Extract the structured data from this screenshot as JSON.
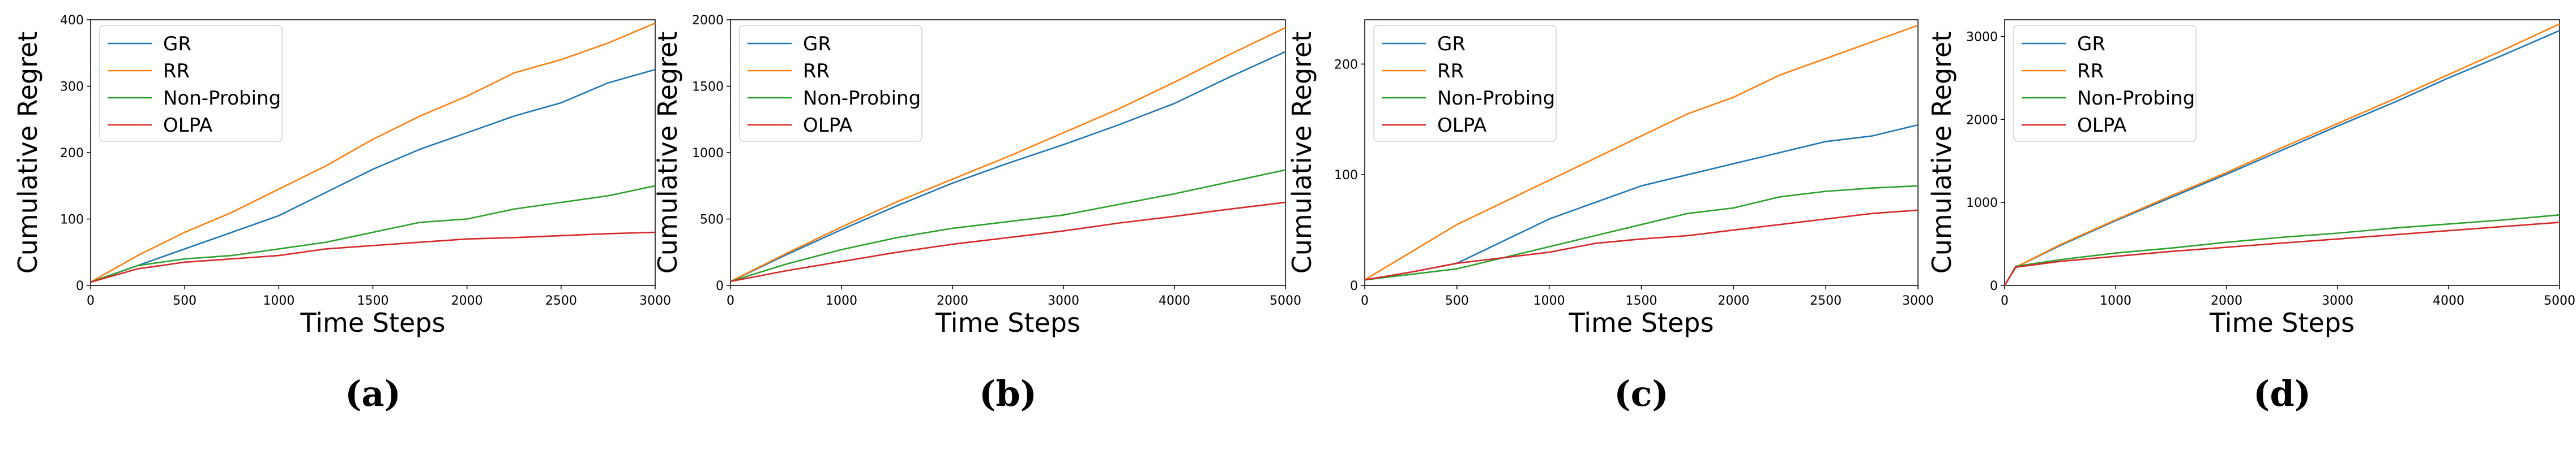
{
  "colors": {
    "GR": "#1f77b4",
    "RR": "#ff7f0e",
    "Non-Probing": "#2ca02c",
    "OLPA": "#d62728"
  },
  "chart_data": [
    {
      "type": "line",
      "caption": "(a)",
      "xlabel": "Time Steps",
      "ylabel": "Cumulative Regret",
      "xlim": [
        0,
        3000
      ],
      "ylim": [
        0,
        400
      ],
      "xticks": [
        0,
        500,
        1000,
        1500,
        2000,
        2500,
        3000
      ],
      "yticks": [
        0,
        100,
        200,
        300,
        400
      ],
      "legend": "top-left",
      "x": [
        0,
        250,
        500,
        750,
        1000,
        1250,
        1500,
        1750,
        2000,
        2250,
        2500,
        2750,
        3000
      ],
      "series": [
        {
          "name": "GR",
          "values": [
            5,
            30,
            55,
            80,
            105,
            140,
            175,
            205,
            230,
            255,
            275,
            305,
            325
          ]
        },
        {
          "name": "RR",
          "values": [
            5,
            45,
            80,
            110,
            145,
            180,
            220,
            255,
            285,
            320,
            340,
            365,
            395
          ]
        },
        {
          "name": "Non-Probing",
          "values": [
            5,
            30,
            40,
            45,
            55,
            65,
            80,
            95,
            100,
            115,
            125,
            135,
            150
          ]
        },
        {
          "name": "OLPA",
          "values": [
            5,
            25,
            35,
            40,
            45,
            55,
            60,
            65,
            70,
            72,
            75,
            78,
            80
          ]
        }
      ]
    },
    {
      "type": "line",
      "caption": "(b)",
      "xlabel": "Time Steps",
      "ylabel": "Cumulative Regret",
      "xlim": [
        0,
        5000
      ],
      "ylim": [
        0,
        2000
      ],
      "xticks": [
        0,
        1000,
        2000,
        3000,
        4000,
        5000
      ],
      "yticks": [
        0,
        500,
        1000,
        1500,
        2000
      ],
      "legend": "top-left",
      "x": [
        0,
        500,
        1000,
        1500,
        2000,
        2500,
        3000,
        3500,
        4000,
        4500,
        5000
      ],
      "series": [
        {
          "name": "GR",
          "values": [
            30,
            230,
            420,
            600,
            770,
            920,
            1060,
            1210,
            1370,
            1570,
            1760
          ]
        },
        {
          "name": "RR",
          "values": [
            30,
            240,
            440,
            630,
            800,
            970,
            1150,
            1330,
            1530,
            1740,
            1940
          ]
        },
        {
          "name": "Non-Probing",
          "values": [
            30,
            160,
            270,
            360,
            430,
            480,
            530,
            610,
            690,
            780,
            870
          ]
        },
        {
          "name": "OLPA",
          "values": [
            30,
            110,
            180,
            250,
            310,
            360,
            410,
            470,
            520,
            575,
            625
          ]
        }
      ]
    },
    {
      "type": "line",
      "caption": "(c)",
      "xlabel": "Time Steps",
      "ylabel": "Cumulative Regret",
      "xlim": [
        0,
        3000
      ],
      "ylim": [
        0,
        240
      ],
      "xticks": [
        0,
        500,
        1000,
        1500,
        2000,
        2500,
        3000
      ],
      "yticks": [
        0,
        100,
        200
      ],
      "legend": "top-left",
      "x": [
        0,
        250,
        500,
        750,
        1000,
        1250,
        1500,
        1750,
        2000,
        2250,
        2500,
        2750,
        3000
      ],
      "series": [
        {
          "name": "GR",
          "values": [
            5,
            12,
            20,
            40,
            60,
            75,
            90,
            100,
            110,
            120,
            130,
            135,
            145
          ]
        },
        {
          "name": "RR",
          "values": [
            5,
            30,
            55,
            75,
            95,
            115,
            135,
            155,
            170,
            190,
            205,
            220,
            235
          ]
        },
        {
          "name": "Non-Probing",
          "values": [
            5,
            10,
            15,
            25,
            35,
            45,
            55,
            65,
            70,
            80,
            85,
            88,
            90
          ]
        },
        {
          "name": "OLPA",
          "values": [
            5,
            12,
            20,
            25,
            30,
            38,
            42,
            45,
            50,
            55,
            60,
            65,
            68
          ]
        }
      ]
    },
    {
      "type": "line",
      "caption": "(d)",
      "xlabel": "Time Steps",
      "ylabel": "Cumulative Regret",
      "xlim": [
        0,
        5000
      ],
      "ylim": [
        0,
        3200
      ],
      "xticks": [
        0,
        1000,
        2000,
        3000,
        4000,
        5000
      ],
      "yticks": [
        0,
        1000,
        2000,
        3000
      ],
      "legend": "top-left",
      "x": [
        0,
        100,
        500,
        1000,
        1500,
        2000,
        2500,
        3000,
        3500,
        4000,
        4500,
        5000
      ],
      "series": [
        {
          "name": "GR",
          "values": [
            0,
            220,
            480,
            780,
            1060,
            1340,
            1630,
            1920,
            2200,
            2500,
            2780,
            3070
          ]
        },
        {
          "name": "RR",
          "values": [
            0,
            220,
            490,
            790,
            1080,
            1360,
            1660,
            1950,
            2240,
            2540,
            2840,
            3150
          ]
        },
        {
          "name": "Non-Probing",
          "values": [
            0,
            230,
            310,
            390,
            450,
            520,
            580,
            630,
            690,
            740,
            790,
            850
          ]
        },
        {
          "name": "OLPA",
          "values": [
            0,
            220,
            290,
            350,
            410,
            460,
            510,
            560,
            610,
            660,
            710,
            760
          ]
        }
      ]
    }
  ]
}
